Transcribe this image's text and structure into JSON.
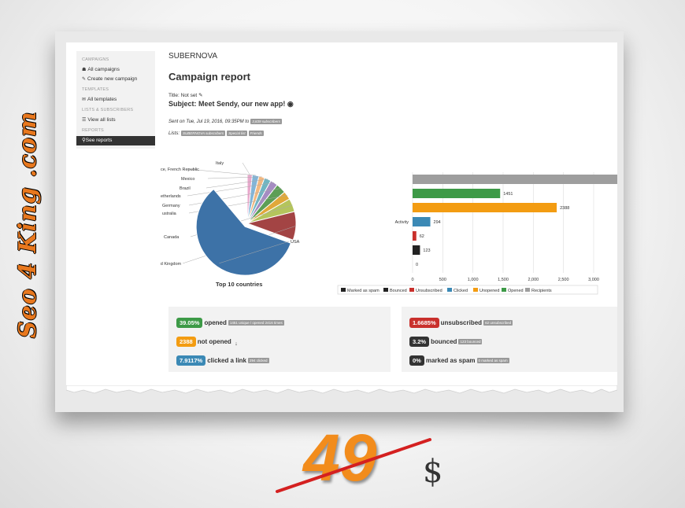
{
  "sidebar": {
    "sections": [
      {
        "heading": "CAMPAIGNS",
        "items": [
          {
            "icon": "home-icon",
            "label": "All campaigns"
          },
          {
            "icon": "edit-icon",
            "label": "Create new campaign"
          }
        ]
      },
      {
        "heading": "TEMPLATES",
        "items": [
          {
            "icon": "envelope-icon",
            "label": "All templates"
          }
        ]
      },
      {
        "heading": "LISTS & SUBSCRIBERS",
        "items": [
          {
            "icon": "list-icon",
            "label": "View all lists"
          }
        ]
      },
      {
        "heading": "REPORTS",
        "items": [
          {
            "icon": "search-icon",
            "label": "See reports",
            "active": true
          }
        ]
      }
    ]
  },
  "header": {
    "app_name": "SUBERNOVA",
    "page_title": "Campaign report",
    "title_line": "Title: Not set",
    "subject_line": "Subject: Meet Sendy, our new app!",
    "sent_on": "Sent on Tue, Jul 19, 2016, 09:35PM to",
    "sent_count": "3,839 subscribers",
    "lists_label": "Lists:",
    "lists": [
      "SUBERNOVA subscribers",
      "Special list",
      "Friends"
    ]
  },
  "pie_chart": {
    "title": "Top 10 countries",
    "labels_visible": [
      "Italy",
      "ce, French Republic",
      "Mexico",
      "Brazil",
      "etherlands",
      "Germany",
      "ustralia",
      "Canada",
      "ited Kingdom",
      "USA"
    ],
    "colors": [
      "#e8a9cc",
      "#82b5d8",
      "#f2b880",
      "#6fb5c2",
      "#a58cc2",
      "#5d9e56",
      "#e0a83a",
      "#b4c45c",
      "#a34444",
      "#3d72a7"
    ]
  },
  "chart_data": {
    "type": "bar",
    "orientation": "horizontal",
    "category_label": "Activity",
    "series": [
      {
        "name": "Recipients",
        "value": 3839,
        "color": "#9e9e9e"
      },
      {
        "name": "Opened",
        "value": 1451,
        "color": "#3d9a47"
      },
      {
        "name": "Unopened",
        "value": 2388,
        "color": "#f39c12"
      },
      {
        "name": "Clicked",
        "value": 294,
        "color": "#3b89b5"
      },
      {
        "name": "Unsubscribed",
        "value": 62,
        "color": "#c9302c"
      },
      {
        "name": "Bounced",
        "value": 123,
        "color": "#222222"
      },
      {
        "name": "Marked as spam",
        "value": 0,
        "color": "#222222"
      }
    ],
    "legend_order": [
      "Marked as spam",
      "Bounced",
      "Unsubscribed",
      "Clicked",
      "Unopened",
      "Opened",
      "Recipients"
    ],
    "xlim": [
      0,
      4500
    ],
    "xticks": [
      "0",
      "500",
      "1,000",
      "1,500",
      "2,000",
      "2,500",
      "3,000",
      "3,500",
      "4,000",
      "4,500"
    ],
    "grid": true,
    "legend_position": "bottom"
  },
  "stats_left": [
    {
      "pct": "39.05%",
      "pct_color": "#3d9a47",
      "label": "opened",
      "note": "1451 unique / opened 2416 times"
    },
    {
      "pct": "2388",
      "pct_color": "#f39c12",
      "label": "not opened",
      "note": ""
    },
    {
      "pct": "7.9117%",
      "pct_color": "#3b89b5",
      "label": "clicked a link",
      "note": "294 clicked"
    }
  ],
  "stats_right": [
    {
      "pct": "1.6685%",
      "pct_color": "#c9302c",
      "label": "unsubscribed",
      "note": "62 unsubscribed"
    },
    {
      "pct": "3.2%",
      "pct_color": "#333333",
      "label": "bounced",
      "note": "123 bounced"
    },
    {
      "pct": "0%",
      "pct_color": "#333333",
      "label": "marked as spam",
      "note": "0 marked as spam"
    }
  ],
  "promo": {
    "brand": "Seo 4 King .com",
    "price": "49",
    "currency": "$"
  }
}
